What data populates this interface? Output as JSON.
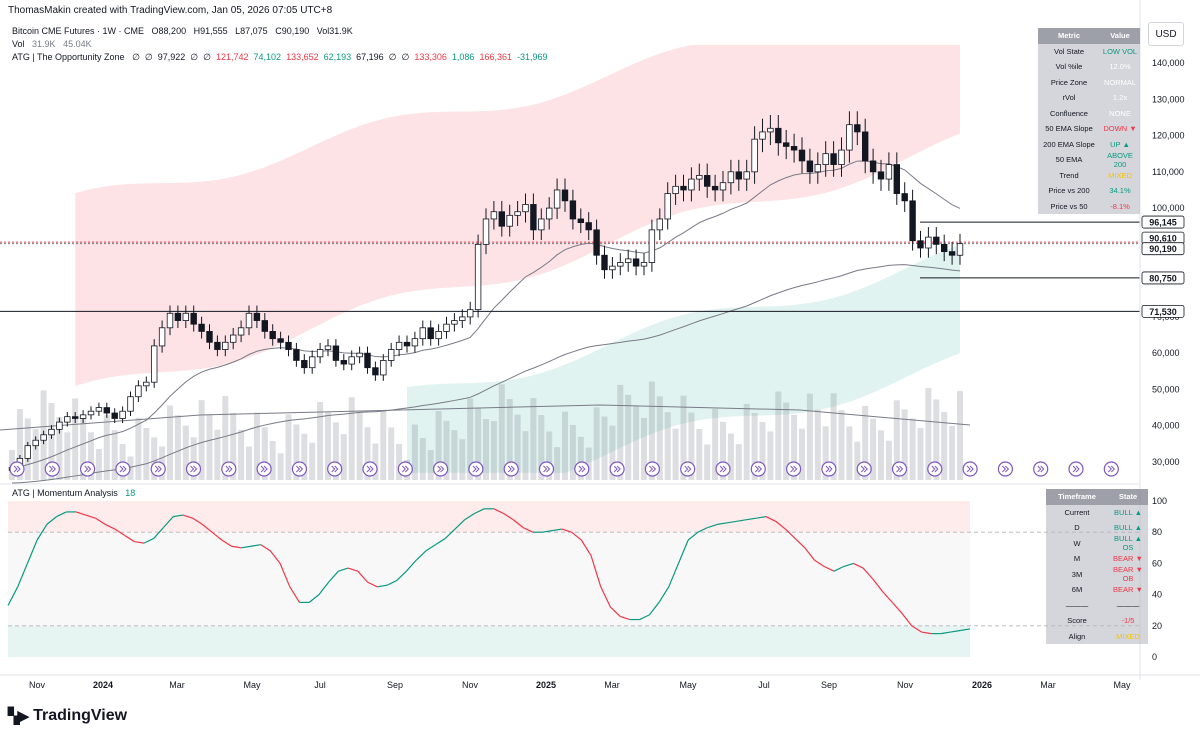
{
  "header": {
    "created_text": "ThomasMakin created with TradingView.com, Jan 05, 2026 07:05 UTC+8"
  },
  "legend": {
    "symbol": "Bitcoin CME Futures · 1W · CME",
    "o": "O88,200",
    "h": "H91,555",
    "l": "L87,075",
    "c": "C90,190",
    "vol_text": "Vol31.9K",
    "vol_label": "Vol",
    "vol_val1": "31.9K",
    "vol_val2": "45.04K",
    "atg_label": "ATG | The Opportunity Zone",
    "atg_parts": [
      {
        "t": "∅",
        "c": "#131722"
      },
      {
        "t": "∅",
        "c": "#131722"
      },
      {
        "t": "97,922",
        "c": "#131722"
      },
      {
        "t": "∅",
        "c": "#131722"
      },
      {
        "t": "∅",
        "c": "#131722"
      },
      {
        "t": "121,742",
        "c": "#f23645"
      },
      {
        "t": "74,102",
        "c": "#089981"
      },
      {
        "t": "133,652",
        "c": "#f23645"
      },
      {
        "t": "62,193",
        "c": "#089981"
      },
      {
        "t": "67,196",
        "c": "#131722"
      },
      {
        "t": "∅",
        "c": "#131722"
      },
      {
        "t": "∅",
        "c": "#131722"
      },
      {
        "t": "133,306",
        "c": "#f23645"
      },
      {
        "t": "1,086",
        "c": "#089981"
      },
      {
        "t": "166,361",
        "c": "#f23645"
      },
      {
        "t": "-31,969",
        "c": "#089981"
      }
    ]
  },
  "usd_label": "USD",
  "metrics_table": {
    "headers": [
      "Metric",
      "Value"
    ],
    "rows": [
      {
        "metric": "Vol State",
        "value": "LOW VOL",
        "color": "#089981"
      },
      {
        "metric": "Vol %ile",
        "value": "12.0%",
        "color": "#ffffff"
      },
      {
        "metric": "Price Zone",
        "value": "NORMAL",
        "color": "#ffffff"
      },
      {
        "metric": "rVol",
        "value": "1.2x",
        "color": "#ffffff"
      },
      {
        "metric": "Confluence",
        "value": "NONE",
        "color": "#ffffff"
      },
      {
        "metric": "50 EMA Slope",
        "value": "DOWN ▼",
        "color": "#f23645"
      },
      {
        "metric": "200 EMA Slope",
        "value": "UP ▲",
        "color": "#089981"
      },
      {
        "metric": "50 EMA",
        "value": "ABOVE 200",
        "color": "#089981"
      },
      {
        "metric": "Trend",
        "value": "MIXED",
        "color": "#f5c400"
      },
      {
        "metric": "Price vs 200",
        "value": "34.1%",
        "color": "#089981"
      },
      {
        "metric": "Price vs 50",
        "value": "-8.1%",
        "color": "#f23645"
      }
    ]
  },
  "momentum_table": {
    "headers": [
      "Timeframe",
      "State"
    ],
    "rows": [
      {
        "tf": "Current",
        "state": "BULL ▲",
        "color": "#089981"
      },
      {
        "tf": "D",
        "state": "BULL ▲",
        "color": "#089981"
      },
      {
        "tf": "W",
        "state": "BULL ▲ OS",
        "color": "#089981"
      },
      {
        "tf": "M",
        "state": "BEAR ▼",
        "color": "#f23645"
      },
      {
        "tf": "3M",
        "state": "BEAR ▼ OB",
        "color": "#f23645"
      },
      {
        "tf": "6M",
        "state": "BEAR ▼",
        "color": "#f23645"
      },
      {
        "tf": "———",
        "state": "———",
        "color": "#131722"
      },
      {
        "tf": "Score",
        "state": "-1/5",
        "color": "#f23645"
      },
      {
        "tf": "Align",
        "state": "MIXED",
        "color": "#f5c400"
      }
    ]
  },
  "momentum_legend": {
    "label": "ATG | Momentum Analysis",
    "value": "18"
  },
  "price_axis": {
    "ticks": [
      "140,000",
      "130,000",
      "120,000",
      "110,000",
      "100,000",
      "90,000",
      "80,000",
      "70,000",
      "60,000",
      "50,000",
      "40,000",
      "30,000"
    ]
  },
  "osc_axis": {
    "ticks": [
      "100",
      "80",
      "60",
      "40",
      "20",
      "0"
    ]
  },
  "time_axis": {
    "labels": [
      "Nov",
      "2024",
      "Mar",
      "May",
      "Jul",
      "Sep",
      "Nov",
      "2025",
      "Mar",
      "May",
      "Jul",
      "Sep",
      "Nov",
      "2026",
      "Mar",
      "May"
    ]
  },
  "price_labels": [
    {
      "text": "96,145",
      "color": "#131722"
    },
    {
      "text": "90,610",
      "color": "#131722"
    },
    {
      "text": "90,190",
      "color": "#131722"
    },
    {
      "text": "80,750",
      "color": "#131722"
    },
    {
      "text": "71,530",
      "color": "#131722"
    }
  ],
  "footer": {
    "brand": "TradingView"
  },
  "chart_data": {
    "type": "candlestick",
    "title": "Bitcoin CME Futures · 1W · CME",
    "timeframe": "1W",
    "ylim": [
      27000,
      150000
    ],
    "horizontal_levels": [
      96145,
      90610,
      80750,
      71530
    ],
    "last_price": 90190,
    "x_axis": [
      "Nov",
      "2024",
      "Mar",
      "May",
      "Jul",
      "Sep",
      "Nov",
      "2025",
      "Mar",
      "May",
      "Jul",
      "Sep",
      "Nov",
      "2026",
      "Mar",
      "May"
    ],
    "weekly_close_approx": [
      28500,
      31000,
      34500,
      36000,
      37500,
      39000,
      41000,
      42500,
      42000,
      43000,
      44000,
      45000,
      43500,
      42000,
      44000,
      48000,
      51000,
      52000,
      62000,
      67000,
      71000,
      69000,
      71000,
      68000,
      66000,
      63000,
      61000,
      63000,
      65000,
      67000,
      71000,
      69000,
      66000,
      64000,
      63000,
      61000,
      58000,
      56000,
      59000,
      61000,
      62000,
      58000,
      57000,
      59000,
      60000,
      56000,
      54000,
      58000,
      61000,
      63000,
      62000,
      64000,
      67000,
      64000,
      66000,
      68000,
      69000,
      70000,
      72000,
      90000,
      97000,
      99000,
      95000,
      98000,
      99000,
      101000,
      94000,
      97000,
      100000,
      105000,
      102000,
      97000,
      96000,
      94000,
      87000,
      83000,
      84000,
      85000,
      86000,
      84000,
      85000,
      94000,
      97000,
      104000,
      106000,
      105000,
      108000,
      109000,
      106000,
      105000,
      107000,
      110000,
      108000,
      110000,
      119000,
      121000,
      122000,
      118000,
      117000,
      116000,
      113000,
      110000,
      112000,
      115000,
      112000,
      116000,
      123000,
      121000,
      113000,
      110000,
      108000,
      112000,
      104000,
      102000,
      91000,
      89000,
      92000,
      90000,
      88000,
      87000,
      90190
    ],
    "ema50_approx": {
      "start": 38000,
      "end": 97922
    },
    "ema200_approx": {
      "start": 27000,
      "end": 67196
    },
    "volume_current": 31900,
    "volume_avg": 45040,
    "momentum": {
      "name": "ATG | Momentum Analysis",
      "current": 18,
      "overbought": 80,
      "oversold": 20,
      "ylim": [
        0,
        100
      ],
      "values": [
        33,
        45,
        60,
        75,
        85,
        90,
        93,
        93,
        91,
        89,
        85,
        82,
        78,
        74,
        73,
        76,
        83,
        90,
        91,
        89,
        85,
        80,
        75,
        71,
        70,
        71,
        72,
        68,
        60,
        45,
        35,
        35,
        40,
        48,
        55,
        57,
        55,
        48,
        45,
        46,
        49,
        55,
        62,
        68,
        72,
        76,
        82,
        88,
        92,
        95,
        95,
        92,
        88,
        83,
        80,
        80,
        81,
        82,
        80,
        75,
        65,
        45,
        32,
        26,
        24,
        24,
        27,
        35,
        45,
        60,
        75,
        80,
        83,
        85,
        86,
        87,
        88,
        89,
        90,
        87,
        82,
        76,
        70,
        62,
        58,
        55,
        58,
        60,
        57,
        50,
        42,
        35,
        28,
        20,
        16,
        15,
        15,
        16,
        17,
        18
      ]
    }
  }
}
